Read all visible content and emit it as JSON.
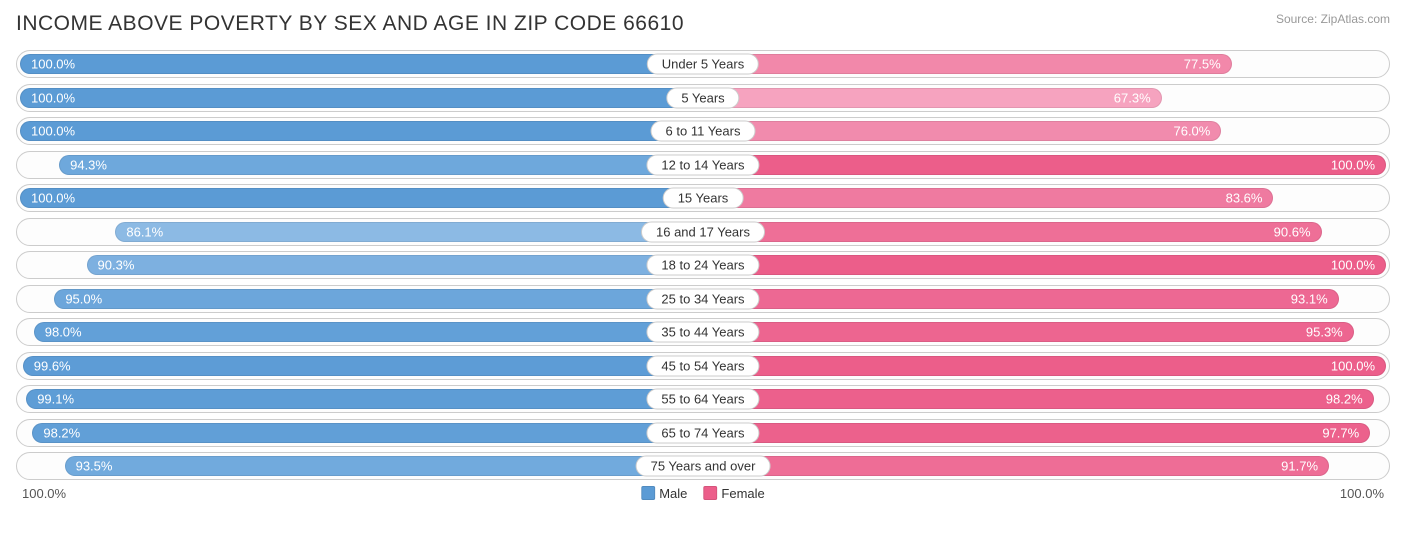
{
  "title": "INCOME ABOVE POVERTY BY SEX AND AGE IN ZIP CODE 66610",
  "source": "Source: ZipAtlas.com",
  "axis": {
    "left": "100.0%",
    "right": "100.0%"
  },
  "legend": {
    "male": {
      "label": "Male",
      "color": "#5b9bd5"
    },
    "female": {
      "label": "Female",
      "color": "#ec5e8a"
    }
  },
  "colors": {
    "male_base": "#5b9bd5",
    "male_light": "#9cc3e8",
    "female_base": "#ec5e8a",
    "female_light": "#f49ab8",
    "border": "#cccccc",
    "bg": "#ffffff",
    "text": "#333333"
  },
  "rows": [
    {
      "category": "Under 5 Years",
      "male": 100.0,
      "female": 77.5,
      "male_color": "#5b9bd5",
      "female_color": "#f288aa"
    },
    {
      "category": "5 Years",
      "male": 100.0,
      "female": 67.3,
      "male_color": "#5b9bd5",
      "female_color": "#f6a3bf"
    },
    {
      "category": "6 to 11 Years",
      "male": 100.0,
      "female": 76.0,
      "male_color": "#5b9bd5",
      "female_color": "#f18bad"
    },
    {
      "category": "12 to 14 Years",
      "male": 94.3,
      "female": 100.0,
      "male_color": "#6ea8dc",
      "female_color": "#ec5e8a"
    },
    {
      "category": "15 Years",
      "male": 100.0,
      "female": 83.6,
      "male_color": "#5b9bd5",
      "female_color": "#ef7aa0"
    },
    {
      "category": "16 and 17 Years",
      "male": 86.1,
      "female": 90.6,
      "male_color": "#8cbae4",
      "female_color": "#ee6f97"
    },
    {
      "category": "18 to 24 Years",
      "male": 90.3,
      "female": 100.0,
      "male_color": "#7db0e0",
      "female_color": "#ec5e8a"
    },
    {
      "category": "25 to 34 Years",
      "male": 95.0,
      "female": 93.1,
      "male_color": "#6ca6db",
      "female_color": "#ed6893"
    },
    {
      "category": "35 to 44 Years",
      "male": 98.0,
      "female": 95.3,
      "male_color": "#62a0d8",
      "female_color": "#ed6590"
    },
    {
      "category": "45 to 54 Years",
      "male": 99.6,
      "female": 100.0,
      "male_color": "#5d9cd6",
      "female_color": "#ec5e8a"
    },
    {
      "category": "55 to 64 Years",
      "male": 99.1,
      "female": 98.2,
      "male_color": "#5e9dd6",
      "female_color": "#ec608c"
    },
    {
      "category": "65 to 74 Years",
      "male": 98.2,
      "female": 97.7,
      "male_color": "#619fd7",
      "female_color": "#ec618c"
    },
    {
      "category": "75 Years and over",
      "male": 93.5,
      "female": 91.7,
      "male_color": "#71aadd",
      "female_color": "#ee6d96"
    }
  ]
}
